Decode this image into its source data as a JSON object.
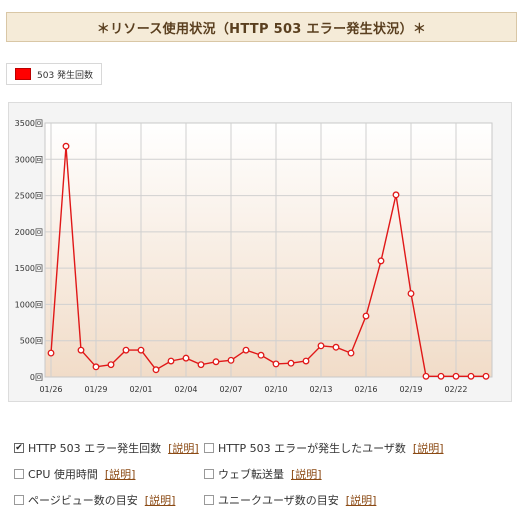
{
  "header": {
    "title": "＊リソース使用状況（HTTP 503 エラー発生状況）＊"
  },
  "legend": {
    "label": "503 発生回数",
    "color": "#ff0000"
  },
  "chart_data": {
    "type": "line",
    "y_unit": "回",
    "ylim": [
      0,
      3500
    ],
    "y_ticks": [
      0,
      500,
      1000,
      1500,
      2000,
      2500,
      3000,
      3500
    ],
    "x_tick_labels": [
      {
        "index": 0,
        "label": "01/26"
      },
      {
        "index": 3,
        "label": "01/29"
      },
      {
        "index": 6,
        "label": "02/01"
      },
      {
        "index": 9,
        "label": "02/04"
      },
      {
        "index": 12,
        "label": "02/07"
      },
      {
        "index": 15,
        "label": "02/10"
      },
      {
        "index": 18,
        "label": "02/13"
      },
      {
        "index": 21,
        "label": "02/16"
      },
      {
        "index": 24,
        "label": "02/19"
      },
      {
        "index": 27,
        "label": "02/22"
      }
    ],
    "values": [
      330,
      3180,
      370,
      140,
      170,
      370,
      370,
      100,
      220,
      260,
      170,
      210,
      230,
      370,
      300,
      180,
      190,
      220,
      430,
      410,
      330,
      840,
      1600,
      2510,
      1150,
      10,
      10,
      10,
      10,
      10
    ],
    "grid": true,
    "series_color": "#e01818"
  },
  "options": [
    {
      "label": "HTTP 503 エラー発生回数",
      "checked": true,
      "help": "[説明]"
    },
    {
      "label": "HTTP 503 エラーが発生したユーザ数",
      "checked": false,
      "help": "[説明]"
    },
    {
      "label": "CPU 使用時間",
      "checked": false,
      "help": "[説明]"
    },
    {
      "label": "ウェブ転送量",
      "checked": false,
      "help": "[説明]"
    },
    {
      "label": "ページビュー数の目安",
      "checked": false,
      "help": "[説明]"
    },
    {
      "label": "ユニークユーザ数の目安",
      "checked": false,
      "help": "[説明]"
    }
  ]
}
